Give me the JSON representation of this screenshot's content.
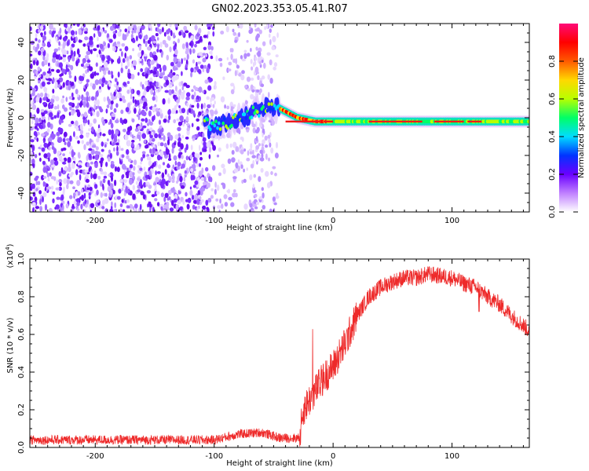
{
  "title": "GN02.2023.353.05.41.R07",
  "chart_data": [
    {
      "type": "heatmap",
      "name": "spectrogram",
      "xlabel": "Height of straight line (km)",
      "ylabel": "Frequency (Hz)",
      "xlim": [
        -255,
        165
      ],
      "ylim": [
        -50,
        50
      ],
      "xticks": [
        -200,
        -100,
        0,
        100
      ],
      "yticks": [
        -40,
        -20,
        0,
        20,
        40
      ],
      "colorbar": {
        "label": "Normalized spectral amplitude",
        "range": [
          0,
          1
        ],
        "ticks": [
          "0.0",
          "0.2",
          "0.4",
          "0.6",
          "0.8"
        ],
        "tick_values": [
          0,
          0.2,
          0.4,
          0.6,
          0.8
        ],
        "colors": [
          "#ffffff",
          "#c080ff",
          "#6a00ff",
          "#0033ff",
          "#00ddff",
          "#00ff66",
          "#b8ff00",
          "#ffd800",
          "#ff5a00",
          "#ff0000",
          "#ff0a78"
        ]
      },
      "ridge": {
        "description_points": [
          {
            "x": -105,
            "y": -6
          },
          {
            "x": -85,
            "y": -2
          },
          {
            "x": -65,
            "y": 3
          },
          {
            "x": -55,
            "y": 6
          },
          {
            "x": -45,
            "y": 5
          },
          {
            "x": -30,
            "y": 0
          },
          {
            "x": -15,
            "y": -2
          },
          {
            "x": 0,
            "y": -2
          },
          {
            "x": 50,
            "y": -2
          },
          {
            "x": 100,
            "y": -2
          },
          {
            "x": 165,
            "y": -2
          }
        ]
      }
    },
    {
      "type": "line",
      "name": "snr",
      "xlabel": "Height of straight line (km)",
      "ylabel": "SNR (10 * v/v)",
      "scale_label": "(x10",
      "scale_exp": "4",
      "scale_close": ")",
      "xlim": [
        -255,
        165
      ],
      "ylim": [
        0,
        1.0
      ],
      "xticks": [
        -200,
        -100,
        0,
        100
      ],
      "yticks": [
        0.0,
        0.2,
        0.4,
        0.6,
        0.8,
        1.0
      ],
      "ytick_labels": [
        "0.0",
        "0.2",
        "0.4",
        "0.6",
        "0.8",
        "1.0"
      ],
      "color": "#ee2a2a",
      "series": [
        {
          "x": [
            -255,
            -200,
            -150,
            -100,
            -80,
            -60,
            -45,
            -28,
            -25,
            -20,
            -10,
            0,
            10,
            20,
            30,
            40,
            50,
            60,
            70,
            80,
            90,
            100,
            110,
            120,
            130,
            140,
            150,
            165
          ],
          "y": [
            0.04,
            0.04,
            0.04,
            0.04,
            0.07,
            0.08,
            0.05,
            0.05,
            0.2,
            0.25,
            0.35,
            0.43,
            0.55,
            0.7,
            0.8,
            0.85,
            0.88,
            0.9,
            0.9,
            0.92,
            0.91,
            0.9,
            0.87,
            0.85,
            0.8,
            0.76,
            0.7,
            0.62
          ]
        }
      ]
    }
  ]
}
